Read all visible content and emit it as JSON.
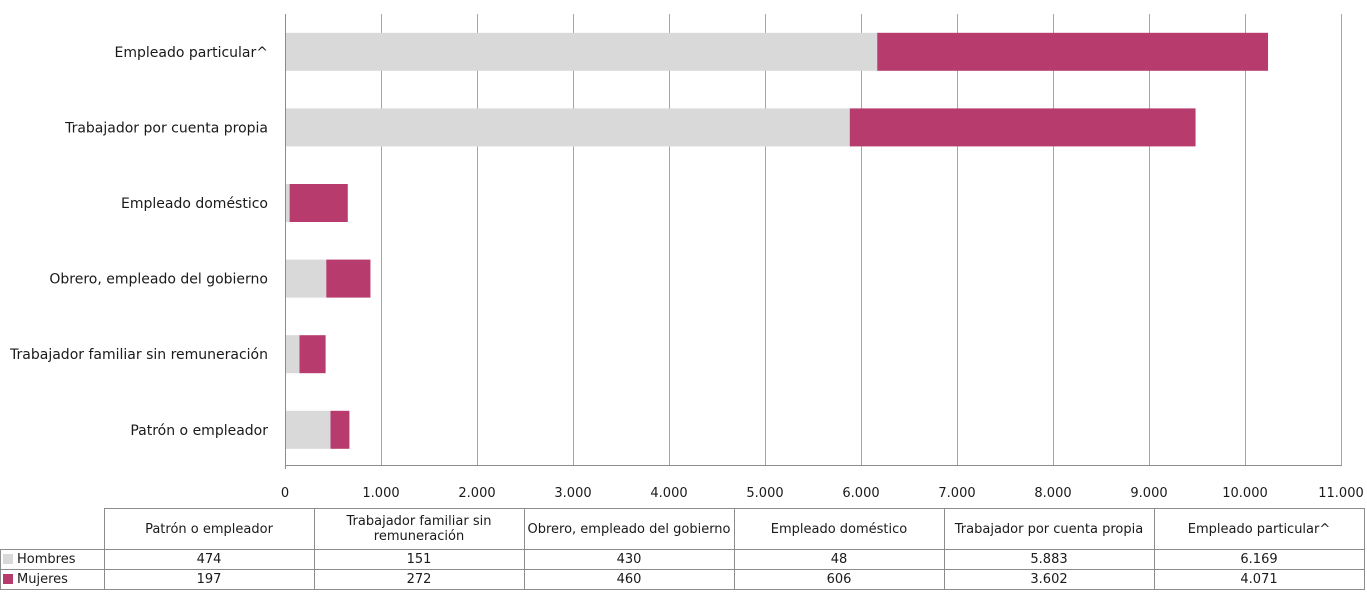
{
  "chart_data": {
    "type": "bar",
    "orientation": "horizontal",
    "stacked": true,
    "categories": [
      "Patrón o empleador",
      "Trabajador familiar sin remuneración",
      "Obrero, empleado del gobierno",
      "Empleado doméstico",
      "Trabajador por cuenta propia",
      "Empleado particular^"
    ],
    "series": [
      {
        "name": "Hombres",
        "color": "#d9d9d9",
        "values": [
          474,
          151,
          430,
          48,
          5883,
          6169
        ],
        "labels": [
          "474",
          "151",
          "430",
          "48",
          "5.883",
          "6.169"
        ]
      },
      {
        "name": "Mujeres",
        "color": "#b83b6e",
        "values": [
          197,
          272,
          460,
          606,
          3602,
          4071
        ],
        "labels": [
          "197",
          "272",
          "460",
          "606",
          "3.602",
          "4.071"
        ]
      }
    ],
    "xlim": [
      0,
      11000
    ],
    "x_ticks": [
      "0",
      "1.000",
      "2.000",
      "3.000",
      "4.000",
      "5.000",
      "6.000",
      "7.000",
      "8.000",
      "9.000",
      "10.000",
      "11.000"
    ],
    "grid": true,
    "legend": "data-table-below",
    "title": "",
    "xlabel": "",
    "ylabel": ""
  }
}
